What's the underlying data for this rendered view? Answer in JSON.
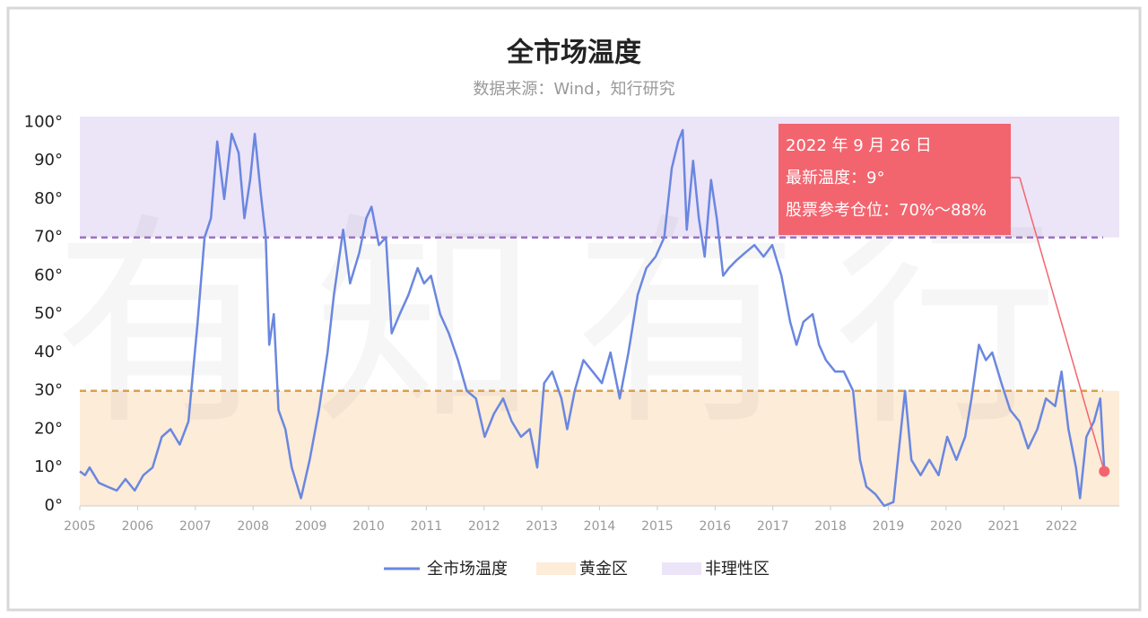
{
  "chart_data": {
    "type": "line",
    "title": "全市场温度",
    "subtitle": "数据来源：Wind，知行研究",
    "watermark": "有知有行",
    "xlim": [
      2005,
      2023
    ],
    "xticks": [
      2005,
      2006,
      2007,
      2008,
      2009,
      2010,
      2011,
      2012,
      2013,
      2014,
      2015,
      2016,
      2017,
      2018,
      2019,
      2020,
      2021,
      2022
    ],
    "ylim": [
      0,
      101.5
    ],
    "yticks": [
      {
        "value": 0,
        "label": "0°"
      },
      {
        "value": 10,
        "label": "10°"
      },
      {
        "value": 20,
        "label": "20°"
      },
      {
        "value": 30,
        "label": "30°"
      },
      {
        "value": 40,
        "label": "40°"
      },
      {
        "value": 50,
        "label": "50°"
      },
      {
        "value": 60,
        "label": "60°"
      },
      {
        "value": 70,
        "label": "70°"
      },
      {
        "value": 80,
        "label": "80°"
      },
      {
        "value": 90,
        "label": "90°"
      },
      {
        "value": 100,
        "label": "100°"
      }
    ],
    "series": [
      {
        "name": "全市场温度",
        "color": "#6a87e0",
        "x": [
          2005.0,
          2005.09,
          2005.17,
          2005.33,
          2005.48,
          2005.64,
          2005.79,
          2005.95,
          2006.1,
          2006.26,
          2006.42,
          2006.57,
          2006.73,
          2006.88,
          2007.04,
          2007.16,
          2007.27,
          2007.38,
          2007.5,
          2007.63,
          2007.75,
          2007.85,
          2007.95,
          2008.03,
          2008.13,
          2008.22,
          2008.28,
          2008.36,
          2008.44,
          2008.56,
          2008.67,
          2008.83,
          2008.98,
          2009.14,
          2009.29,
          2009.4,
          2009.56,
          2009.68,
          2009.84,
          2009.96,
          2010.05,
          2010.18,
          2010.3,
          2010.4,
          2010.54,
          2010.69,
          2010.85,
          2010.96,
          2011.08,
          2011.24,
          2011.39,
          2011.55,
          2011.7,
          2011.86,
          2012.01,
          2012.17,
          2012.33,
          2012.48,
          2012.64,
          2012.79,
          2012.92,
          2013.04,
          2013.18,
          2013.34,
          2013.44,
          2013.57,
          2013.72,
          2013.88,
          2014.04,
          2014.19,
          2014.35,
          2014.5,
          2014.66,
          2014.81,
          2014.97,
          2015.12,
          2015.25,
          2015.36,
          2015.44,
          2015.51,
          2015.62,
          2015.72,
          2015.82,
          2015.93,
          2016.03,
          2016.14,
          2016.24,
          2016.37,
          2016.52,
          2016.68,
          2016.84,
          2016.99,
          2017.15,
          2017.3,
          2017.41,
          2017.53,
          2017.69,
          2017.8,
          2017.92,
          2018.08,
          2018.23,
          2018.39,
          2018.51,
          2018.62,
          2018.78,
          2018.93,
          2019.09,
          2019.29,
          2019.4,
          2019.56,
          2019.71,
          2019.87,
          2020.02,
          2020.18,
          2020.33,
          2020.44,
          2020.57,
          2020.69,
          2020.8,
          2020.96,
          2021.11,
          2021.27,
          2021.42,
          2021.58,
          2021.73,
          2021.89,
          2022.0,
          2022.12,
          2022.25,
          2022.32,
          2022.43,
          2022.56,
          2022.67,
          2022.74
        ],
        "values": [
          9,
          8,
          10,
          6,
          5,
          4,
          7,
          4,
          8,
          10,
          18,
          20,
          16,
          22,
          48,
          70,
          75,
          95,
          80,
          97,
          92,
          75,
          85,
          97,
          82,
          70,
          42,
          50,
          25,
          20,
          10,
          2,
          12,
          25,
          40,
          55,
          72,
          58,
          66,
          75,
          78,
          68,
          70,
          45,
          50,
          55,
          62,
          58,
          60,
          50,
          45,
          38,
          30,
          28,
          18,
          24,
          28,
          22,
          18,
          20,
          10,
          32,
          35,
          28,
          20,
          30,
          38,
          35,
          32,
          40,
          28,
          40,
          55,
          62,
          65,
          70,
          88,
          95,
          98,
          72,
          90,
          75,
          65,
          85,
          75,
          60,
          62,
          64,
          66,
          68,
          65,
          68,
          60,
          48,
          42,
          48,
          50,
          42,
          38,
          35,
          35,
          30,
          12,
          5,
          3,
          0,
          1,
          30,
          12,
          8,
          12,
          8,
          18,
          12,
          18,
          28,
          42,
          38,
          40,
          32,
          25,
          22,
          15,
          20,
          28,
          26,
          35,
          20,
          10,
          2,
          18,
          22,
          28,
          9
        ]
      }
    ],
    "bands": [
      {
        "name": "黄金区",
        "range": [
          0,
          30
        ],
        "color": "#fcecd8",
        "line_color": "#dba04a"
      },
      {
        "name": "非理性区",
        "range": [
          70,
          101.5
        ],
        "color": "#ece4f7",
        "line_color": "#9b72c4"
      }
    ],
    "annotation": {
      "lines": [
        "2022 年 9 月 26 日",
        "最新温度：9°",
        "股票参考仓位：70%～88%"
      ],
      "color": "#f2656f"
    }
  }
}
